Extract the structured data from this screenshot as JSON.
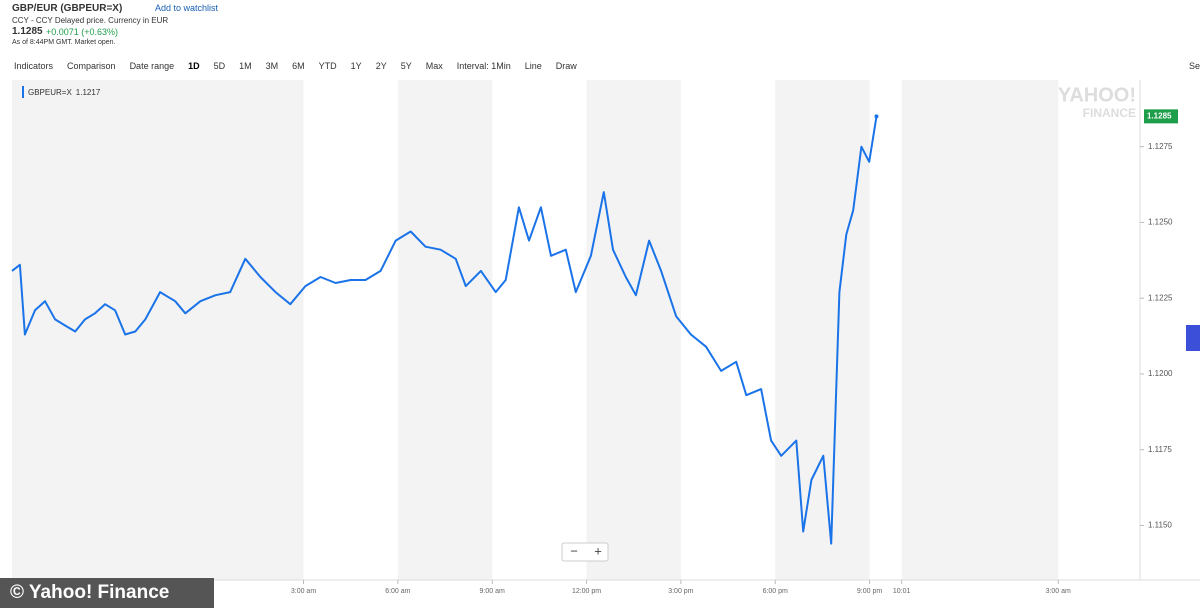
{
  "header": {
    "title": "GBP/EUR (GBPEUR=X)",
    "watchlist": "Add to watchlist",
    "subtitle": "CCY - CCY Delayed price. Currency in EUR",
    "price": "1.1285",
    "change": "+0.0071 (+0.63%)",
    "status": "As of 8:44PM GMT. Market open."
  },
  "toolbar": {
    "left": [
      "Indicators",
      "Comparison",
      "Date range"
    ],
    "ranges": [
      "1D",
      "5D",
      "1M",
      "3M",
      "6M",
      "YTD",
      "1Y",
      "2Y",
      "5Y",
      "Max"
    ],
    "options": [
      "Interval: 1Min",
      "Line",
      "Draw"
    ],
    "right": "Se"
  },
  "chart_data": {
    "type": "line",
    "series": [
      {
        "name": "GBPEUR=X",
        "color": "#1a73e8",
        "values": [
          1.1234,
          1.1236,
          1.1213,
          1.1221,
          1.1224,
          1.1218,
          1.1216,
          1.1214,
          1.1218,
          1.122,
          1.1223,
          1.1221,
          1.1213,
          1.1214,
          1.1218,
          1.1227,
          1.1224,
          1.122,
          1.1224,
          1.1226,
          1.1227,
          1.1238,
          1.1232,
          1.1227,
          1.1223,
          1.1229,
          1.1232,
          1.123,
          1.1231,
          1.1231,
          1.1234,
          1.1244,
          1.1247,
          1.1242,
          1.1241,
          1.1238,
          1.1229,
          1.1234,
          1.1227,
          1.1231,
          1.1255,
          1.1244,
          1.1255,
          1.1239,
          1.1241,
          1.1227,
          1.1239,
          1.126,
          1.1241,
          1.1232,
          1.1226,
          1.1244,
          1.1234,
          1.1219,
          1.1213,
          1.1209,
          1.1201,
          1.1204,
          1.1193,
          1.1195,
          1.1178,
          1.1173,
          1.1178,
          1.1148,
          1.1165,
          1.1173,
          1.1144,
          1.1227,
          1.1246,
          1.1254,
          1.1275,
          1.127,
          1.1285
        ]
      }
    ],
    "x": [
      -6.27,
      -6.02,
      -5.86,
      -5.54,
      -5.22,
      -4.9,
      -4.58,
      -4.26,
      -3.95,
      -3.63,
      -3.31,
      -2.99,
      -2.67,
      -2.35,
      -2.03,
      -1.56,
      -1.08,
      -0.76,
      -0.28,
      0.2,
      0.67,
      1.15,
      1.63,
      2.11,
      2.58,
      3.06,
      3.54,
      4.02,
      4.5,
      4.97,
      5.45,
      5.93,
      6.41,
      6.88,
      7.36,
      7.84,
      8.16,
      8.64,
      9.11,
      9.43,
      9.85,
      10.17,
      10.55,
      10.87,
      11.34,
      11.66,
      12.14,
      12.55,
      12.84,
      13.25,
      13.57,
      13.99,
      14.37,
      14.85,
      15.32,
      15.8,
      16.28,
      16.76,
      17.08,
      17.55,
      17.87,
      18.19,
      18.67,
      18.89,
      19.15,
      19.53,
      19.78,
      20.04,
      20.26,
      20.48,
      20.74,
      20.99,
      21.22
    ],
    "xlim": [
      -6.27,
      29.6
    ],
    "xticks": [
      {
        "value": 3,
        "label": "3:00 am"
      },
      {
        "value": 6,
        "label": "6:00 am"
      },
      {
        "value": 9,
        "label": "9:00 am"
      },
      {
        "value": 12,
        "label": "12:00 pm"
      },
      {
        "value": 15,
        "label": "3:00 pm"
      },
      {
        "value": 18,
        "label": "6:00 pm"
      },
      {
        "value": 21,
        "label": "9:00 pm"
      },
      {
        "value": 22.02,
        "label": "10:01"
      },
      {
        "value": 27,
        "label": "3:00 am"
      }
    ],
    "ylim": [
      1.1132,
      1.1297
    ],
    "yticks": [
      {
        "value": 1.115,
        "label": "1.1150"
      },
      1.1175,
      {
        "value": 1.12,
        "label": "1.1200"
      },
      1.1225,
      {
        "value": 1.125,
        "label": "1.1250"
      },
      1.1275
    ],
    "legend_value": 1.1217,
    "price_tag_color": "#1e9e4a",
    "watermark": [
      "YAHOO!",
      "FINANCE"
    ],
    "zoom_controls": [
      "−",
      "+"
    ]
  },
  "footer": {
    "credit": "© Yahoo! Finance"
  }
}
